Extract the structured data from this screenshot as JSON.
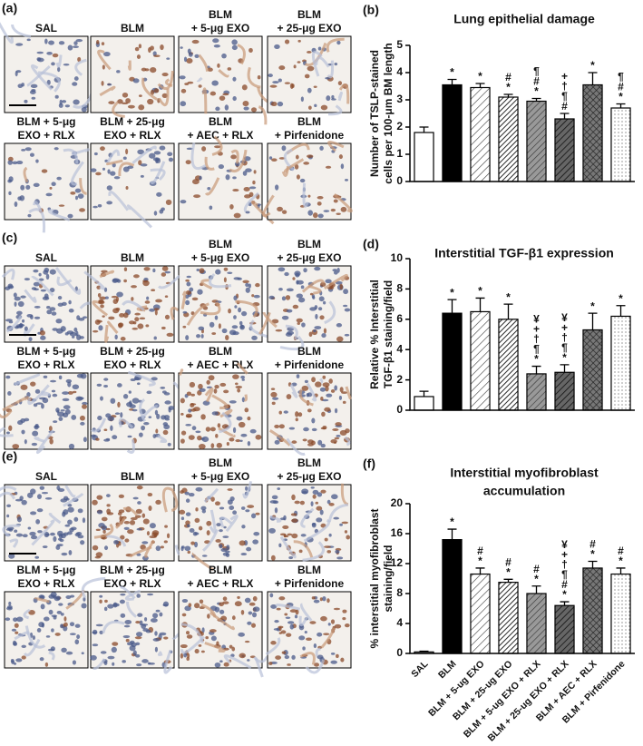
{
  "panels": [
    {
      "label": "(a)",
      "images": [
        {
          "lines": [
            "SAL"
          ]
        },
        {
          "lines": [
            "BLM"
          ]
        },
        {
          "lines": [
            "BLM",
            "+ 5-μg EXO"
          ]
        },
        {
          "lines": [
            "BLM",
            "+ 25-μg EXO"
          ]
        },
        {
          "lines": [
            "BLM + 5-μg",
            "EXO + RLX"
          ]
        },
        {
          "lines": [
            "BLM + 25-μg",
            "EXO + RLX"
          ]
        },
        {
          "lines": [
            "BLM",
            "+ AEC + RLX"
          ]
        },
        {
          "lines": [
            "BLM",
            "+ Pirfenidone"
          ]
        }
      ]
    },
    {
      "label": "(c)",
      "images": [
        {
          "lines": [
            "SAL"
          ]
        },
        {
          "lines": [
            "BLM"
          ]
        },
        {
          "lines": [
            "BLM",
            "+ 5-μg EXO"
          ]
        },
        {
          "lines": [
            "BLM",
            "+ 25-μg EXO"
          ]
        },
        {
          "lines": [
            "BLM + 5-μg",
            "EXO + RLX"
          ]
        },
        {
          "lines": [
            "BLM + 25-μg",
            "EXO + RLX"
          ]
        },
        {
          "lines": [
            "BLM",
            "+ AEC + RLX"
          ]
        },
        {
          "lines": [
            "BLM",
            "+ Pirfenidone"
          ]
        }
      ]
    },
    {
      "label": "(e)",
      "images": [
        {
          "lines": [
            "SAL"
          ]
        },
        {
          "lines": [
            "BLM"
          ]
        },
        {
          "lines": [
            "BLM",
            "+ 5-μg EXO"
          ]
        },
        {
          "lines": [
            "BLM",
            "+ 25-μg EXO"
          ]
        },
        {
          "lines": [
            "BLM + 5-μg",
            "EXO + RLX"
          ]
        },
        {
          "lines": [
            "BLM + 25-μg",
            "EXO + RLX"
          ]
        },
        {
          "lines": [
            "BLM",
            "+ AEC + RLX"
          ]
        },
        {
          "lines": [
            "BLM",
            "+ Pirfenidone"
          ]
        }
      ]
    }
  ],
  "chart_data": [
    {
      "type": "bar",
      "label": "(b)",
      "title": [
        "Lung epithelial damage"
      ],
      "ylabel": [
        "Number of TSLP-stained",
        "cells per 100-μm BM length"
      ],
      "values": [
        1.8,
        3.55,
        3.45,
        3.1,
        2.95,
        2.3,
        3.55,
        2.7
      ],
      "errors": [
        0.2,
        0.2,
        0.15,
        0.1,
        0.1,
        0.2,
        0.45,
        0.15
      ],
      "annotations": [
        null,
        [
          "*"
        ],
        [
          "*"
        ],
        [
          "#",
          "*"
        ],
        [
          "¶",
          "#",
          "*"
        ],
        [
          "+",
          "†",
          "¶",
          "#"
        ],
        [
          "*"
        ],
        [
          "¶",
          "#",
          "*"
        ]
      ],
      "fills": [
        "white",
        "black",
        "hatch",
        "hatch-dense",
        "hatch-gray",
        "hatch-dark",
        "crosshatch",
        "dots"
      ],
      "ylim": [
        0,
        5
      ],
      "yticks": [
        0,
        1,
        2,
        3,
        4,
        5
      ]
    },
    {
      "type": "bar",
      "label": "(d)",
      "title": [
        "Interstitial TGF-β1 expression"
      ],
      "ylabel": [
        "Relative % Interstitial",
        "TGF-β1 staining/field"
      ],
      "values": [
        0.9,
        6.4,
        6.5,
        6.0,
        2.4,
        2.5,
        5.3,
        6.2
      ],
      "errors": [
        0.35,
        0.9,
        0.9,
        1.0,
        0.5,
        0.5,
        1.1,
        0.7
      ],
      "annotations": [
        null,
        [
          "*"
        ],
        [
          "*"
        ],
        [
          "*"
        ],
        [
          "¥",
          "+",
          "†",
          "¶",
          "*"
        ],
        [
          "¥",
          "+",
          "†",
          "¶",
          "*"
        ],
        [
          "*"
        ],
        [
          "*"
        ]
      ],
      "fills": [
        "white",
        "black",
        "hatch",
        "hatch-dense",
        "hatch-gray",
        "hatch-dark",
        "crosshatch",
        "dots"
      ],
      "ylim": [
        0,
        10
      ],
      "yticks": [
        0,
        2,
        4,
        6,
        8,
        10
      ]
    },
    {
      "type": "bar",
      "label": "(f)",
      "title": [
        "Interstitial myofibroblast",
        "accumulation"
      ],
      "ylabel": [
        "% interstitial myofibroblast",
        "staining/field"
      ],
      "categories": [
        "SAL",
        "BLM",
        "BLM + 5-ug EXO",
        "BLM + 25-ug EXO",
        "BLM + 5-ug EXO + RLX",
        "BLM + 25-ug EXO + RLX",
        "BLM + AEC + RLX",
        "BLM + Pirfenidone"
      ],
      "values": [
        0.2,
        15.2,
        10.6,
        9.5,
        8.0,
        6.4,
        11.4,
        10.6
      ],
      "errors": [
        0.1,
        1.4,
        0.8,
        0.4,
        1.0,
        0.5,
        0.9,
        0.8
      ],
      "annotations": [
        null,
        [
          "*"
        ],
        [
          "#",
          "*"
        ],
        [
          "#",
          "*"
        ],
        [
          "#",
          "*"
        ],
        [
          "¥",
          "+",
          "†",
          "¶",
          "#",
          "*"
        ],
        [
          "#",
          "*"
        ],
        [
          "#",
          "*"
        ]
      ],
      "fills": [
        "white",
        "black",
        "hatch",
        "hatch-dense",
        "hatch-gray",
        "hatch-dark",
        "crosshatch",
        "dots"
      ],
      "ylim": [
        0,
        20
      ],
      "yticks": [
        0,
        4,
        8,
        12,
        16,
        20
      ]
    }
  ]
}
